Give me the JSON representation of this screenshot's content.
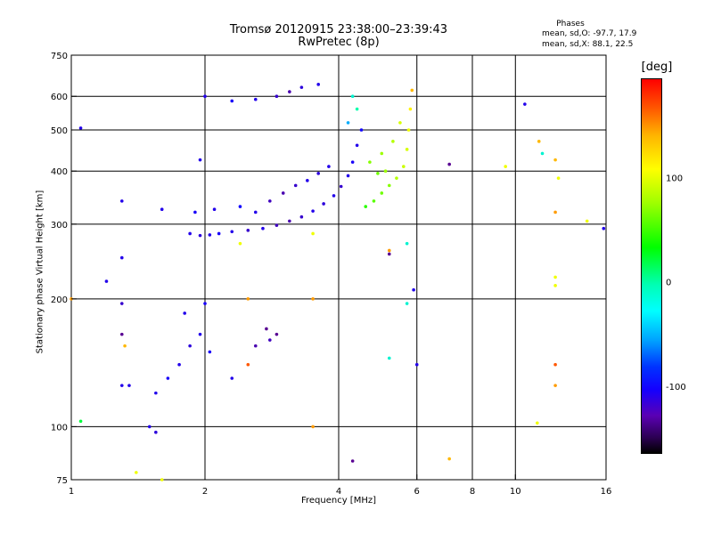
{
  "title": {
    "line1": "Tromsø 20120915 23:38:00–23:39:43",
    "line2": "RwPretec (8p)"
  },
  "stats": {
    "title": "Phases",
    "o_line": "mean, sd,O: -97.7, 17.9",
    "x_line": "mean, sd,X:  88.1, 22.5"
  },
  "colorbar": {
    "label": "[deg]",
    "ticks": [
      {
        "value": 100,
        "label": "100"
      },
      {
        "value": 0,
        "label": "0"
      },
      {
        "value": -100,
        "label": "-100"
      }
    ]
  },
  "chart_data": {
    "type": "scatter",
    "xlabel": "Frequency [MHz]",
    "ylabel": "Stationary phase Virtual Height [km]",
    "x_scale": "log",
    "y_scale": "log",
    "xlim": [
      1,
      16
    ],
    "ylim": [
      75,
      750
    ],
    "x_ticks": [
      {
        "value": 1,
        "label": "1"
      },
      {
        "value": 2,
        "label": "2"
      },
      {
        "value": 4,
        "label": "4"
      },
      {
        "value": 6,
        "label": "6"
      },
      {
        "value": 8,
        "label": "8"
      },
      {
        "value": 10,
        "label": "10"
      },
      {
        "value": 16,
        "label": "16"
      }
    ],
    "y_ticks": [
      {
        "value": 75,
        "label": "75"
      },
      {
        "value": 100,
        "label": "100"
      },
      {
        "value": 200,
        "label": "200"
      },
      {
        "value": 300,
        "label": "300"
      },
      {
        "value": 400,
        "label": "400"
      },
      {
        "value": 500,
        "label": "500"
      },
      {
        "value": 600,
        "label": "600"
      },
      {
        "value": 750,
        "label": "750"
      }
    ],
    "x_grid": [
      2,
      4,
      6,
      8,
      10
    ],
    "y_grid": [
      100,
      200,
      300,
      400,
      500,
      600
    ],
    "color_scale": "phase in degrees",
    "series": [
      {
        "points": [
          {
            "x": 1.85,
            "y": 285,
            "phase": -100
          },
          {
            "x": 1.95,
            "y": 282,
            "phase": -105
          },
          {
            "x": 2.05,
            "y": 283,
            "phase": -100
          },
          {
            "x": 2.15,
            "y": 285,
            "phase": -95
          },
          {
            "x": 2.3,
            "y": 288,
            "phase": -100
          },
          {
            "x": 2.5,
            "y": 290,
            "phase": -110
          },
          {
            "x": 2.7,
            "y": 293,
            "phase": -100
          },
          {
            "x": 2.9,
            "y": 298,
            "phase": -115
          },
          {
            "x": 3.1,
            "y": 305,
            "phase": -120
          },
          {
            "x": 3.3,
            "y": 312,
            "phase": -110
          },
          {
            "x": 3.5,
            "y": 322,
            "phase": -100
          },
          {
            "x": 3.7,
            "y": 335,
            "phase": -105
          },
          {
            "x": 3.9,
            "y": 350,
            "phase": -100
          },
          {
            "x": 4.05,
            "y": 368,
            "phase": -110
          },
          {
            "x": 4.2,
            "y": 390,
            "phase": -100
          },
          {
            "x": 4.3,
            "y": 420,
            "phase": -95
          },
          {
            "x": 4.4,
            "y": 460,
            "phase": -100
          },
          {
            "x": 4.5,
            "y": 500,
            "phase": -90
          },
          {
            "x": 1.9,
            "y": 320,
            "phase": -95
          },
          {
            "x": 2.1,
            "y": 325,
            "phase": -100
          },
          {
            "x": 2.4,
            "y": 330,
            "phase": -90
          },
          {
            "x": 2.6,
            "y": 320,
            "phase": -100
          },
          {
            "x": 2.8,
            "y": 340,
            "phase": -115
          },
          {
            "x": 3.0,
            "y": 355,
            "phase": -120
          },
          {
            "x": 3.2,
            "y": 370,
            "phase": -110
          },
          {
            "x": 3.4,
            "y": 380,
            "phase": -100
          },
          {
            "x": 3.6,
            "y": 395,
            "phase": -105
          },
          {
            "x": 3.8,
            "y": 410,
            "phase": -100
          },
          {
            "x": 2.0,
            "y": 600,
            "phase": -100
          },
          {
            "x": 2.3,
            "y": 585,
            "phase": -95
          },
          {
            "x": 2.6,
            "y": 590,
            "phase": -100
          },
          {
            "x": 2.9,
            "y": 600,
            "phase": -110
          },
          {
            "x": 3.1,
            "y": 615,
            "phase": -120
          },
          {
            "x": 3.3,
            "y": 630,
            "phase": -105
          },
          {
            "x": 3.6,
            "y": 640,
            "phase": -100
          },
          {
            "x": 1.55,
            "y": 120,
            "phase": -100
          },
          {
            "x": 1.65,
            "y": 130,
            "phase": -95
          },
          {
            "x": 1.75,
            "y": 140,
            "phase": -100
          },
          {
            "x": 1.85,
            "y": 155,
            "phase": -105
          },
          {
            "x": 1.95,
            "y": 165,
            "phase": -100
          },
          {
            "x": 2.05,
            "y": 150,
            "phase": -95
          },
          {
            "x": 1.5,
            "y": 100,
            "phase": -100
          },
          {
            "x": 1.55,
            "y": 97,
            "phase": -105
          },
          {
            "x": 1.8,
            "y": 185,
            "phase": -100
          },
          {
            "x": 2.0,
            "y": 195,
            "phase": -95
          },
          {
            "x": 2.3,
            "y": 130,
            "phase": -100
          },
          {
            "x": 2.6,
            "y": 155,
            "phase": -120
          },
          {
            "x": 2.8,
            "y": 160,
            "phase": -115
          },
          {
            "x": 4.6,
            "y": 330,
            "phase": 60
          },
          {
            "x": 4.8,
            "y": 340,
            "phase": 70
          },
          {
            "x": 5.0,
            "y": 355,
            "phase": 75
          },
          {
            "x": 5.2,
            "y": 370,
            "phase": 80
          },
          {
            "x": 5.4,
            "y": 385,
            "phase": 90
          },
          {
            "x": 5.6,
            "y": 410,
            "phase": 95
          },
          {
            "x": 5.7,
            "y": 450,
            "phase": 100
          },
          {
            "x": 5.75,
            "y": 500,
            "phase": 110
          },
          {
            "x": 5.8,
            "y": 560,
            "phase": 120
          },
          {
            "x": 5.85,
            "y": 620,
            "phase": 140
          },
          {
            "x": 4.7,
            "y": 420,
            "phase": 80
          },
          {
            "x": 5.0,
            "y": 440,
            "phase": 85
          },
          {
            "x": 5.3,
            "y": 470,
            "phase": 90
          },
          {
            "x": 5.5,
            "y": 520,
            "phase": 100
          },
          {
            "x": 4.9,
            "y": 395,
            "phase": 75
          },
          {
            "x": 5.1,
            "y": 400,
            "phase": 85
          },
          {
            "x": 4.4,
            "y": 560,
            "phase": 20
          },
          {
            "x": 4.3,
            "y": 600,
            "phase": 10
          },
          {
            "x": 4.2,
            "y": 520,
            "phase": -20
          },
          {
            "x": 1.05,
            "y": 505,
            "phase": -100
          },
          {
            "x": 1.3,
            "y": 340,
            "phase": -100
          },
          {
            "x": 1.3,
            "y": 250,
            "phase": -100
          },
          {
            "x": 1.2,
            "y": 220,
            "phase": -100
          },
          {
            "x": 1.3,
            "y": 195,
            "phase": -110
          },
          {
            "x": 1.3,
            "y": 165,
            "phase": -130
          },
          {
            "x": 1.32,
            "y": 155,
            "phase": 140
          },
          {
            "x": 1.3,
            "y": 125,
            "phase": -100
          },
          {
            "x": 1.35,
            "y": 125,
            "phase": -100
          },
          {
            "x": 1.05,
            "y": 103,
            "phase": 40
          },
          {
            "x": 1.4,
            "y": 78,
            "phase": 110
          },
          {
            "x": 1.6,
            "y": 75,
            "phase": 110
          },
          {
            "x": 1.0,
            "y": 200,
            "phase": 150
          },
          {
            "x": 1.6,
            "y": 325,
            "phase": -100
          },
          {
            "x": 1.95,
            "y": 425,
            "phase": -100
          },
          {
            "x": 2.4,
            "y": 270,
            "phase": 110
          },
          {
            "x": 2.5,
            "y": 200,
            "phase": 150
          },
          {
            "x": 2.5,
            "y": 140,
            "phase": 170
          },
          {
            "x": 2.75,
            "y": 170,
            "phase": -130
          },
          {
            "x": 2.9,
            "y": 165,
            "phase": -130
          },
          {
            "x": 3.5,
            "y": 285,
            "phase": 110
          },
          {
            "x": 3.5,
            "y": 200,
            "phase": 150
          },
          {
            "x": 3.5,
            "y": 100,
            "phase": 150
          },
          {
            "x": 4.3,
            "y": 83,
            "phase": -130
          },
          {
            "x": 5.2,
            "y": 260,
            "phase": 150
          },
          {
            "x": 5.2,
            "y": 255,
            "phase": -130
          },
          {
            "x": 5.7,
            "y": 270,
            "phase": 10
          },
          {
            "x": 5.7,
            "y": 195,
            "phase": 10
          },
          {
            "x": 5.2,
            "y": 145,
            "phase": 10
          },
          {
            "x": 5.9,
            "y": 210,
            "phase": -100
          },
          {
            "x": 6.0,
            "y": 140,
            "phase": -100
          },
          {
            "x": 7.1,
            "y": 415,
            "phase": -130
          },
          {
            "x": 7.1,
            "y": 84,
            "phase": 140
          },
          {
            "x": 9.5,
            "y": 410,
            "phase": 110
          },
          {
            "x": 10.5,
            "y": 575,
            "phase": -100
          },
          {
            "x": 11.3,
            "y": 470,
            "phase": 140
          },
          {
            "x": 11.5,
            "y": 440,
            "phase": 10
          },
          {
            "x": 12.3,
            "y": 425,
            "phase": 140
          },
          {
            "x": 12.5,
            "y": 385,
            "phase": 110
          },
          {
            "x": 12.3,
            "y": 320,
            "phase": 150
          },
          {
            "x": 12.3,
            "y": 225,
            "phase": 110
          },
          {
            "x": 12.3,
            "y": 215,
            "phase": 110
          },
          {
            "x": 12.3,
            "y": 140,
            "phase": 170
          },
          {
            "x": 12.3,
            "y": 125,
            "phase": 150
          },
          {
            "x": 11.2,
            "y": 102,
            "phase": 110
          },
          {
            "x": 14.5,
            "y": 305,
            "phase": 110
          },
          {
            "x": 15.8,
            "y": 293,
            "phase": -100
          }
        ]
      }
    ]
  }
}
